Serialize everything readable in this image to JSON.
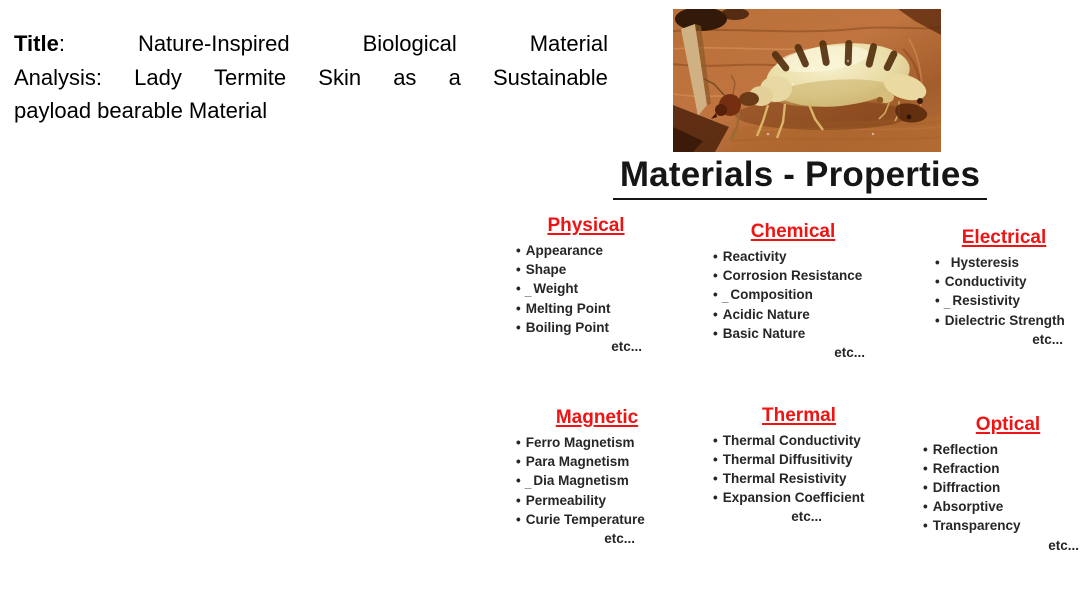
{
  "slide_title": {
    "lead": "Title",
    "lead_suffix": ":",
    "line1_words": [
      "Nature-Inspired",
      "Biological",
      "Material"
    ],
    "line2_words": [
      "Analysis:",
      "Lady",
      "Termite",
      "Skin",
      "as",
      "a",
      "Sustainable"
    ],
    "line3": "payload bearable Material",
    "full_text": "Title: Nature-Inspired Biological Material Analysis: Lady Termite Skin as a Sustainable payload bearable Material"
  },
  "properties_section": {
    "heading": "Materials - Properties",
    "groups": [
      {
        "name": "Physical",
        "items": [
          {
            "t": "Appearance"
          },
          {
            "t": "Shape"
          },
          {
            "t": "Weight",
            "m": true
          },
          {
            "t": "Melting Point"
          },
          {
            "t": "Boiling Point"
          }
        ],
        "etc": "etc..."
      },
      {
        "name": "Chemical",
        "items": [
          {
            "t": "Reactivity"
          },
          {
            "t": "Corrosion Resistance"
          },
          {
            "t": "Composition",
            "m": true
          },
          {
            "t": "Acidic Nature"
          },
          {
            "t": "Basic Nature"
          }
        ],
        "etc": "etc..."
      },
      {
        "name": "Electrical",
        "items": [
          {
            "t": "Hysteresis",
            "sp": true
          },
          {
            "t": "Conductivity"
          },
          {
            "t": "Resistivity",
            "m": true
          },
          {
            "t": "Dielectric Strength"
          }
        ],
        "etc": "etc..."
      },
      {
        "name": "Magnetic",
        "items": [
          {
            "t": "Ferro Magnetism"
          },
          {
            "t": "Para Magnetism"
          },
          {
            "t": "Dia Magnetism",
            "m": true
          },
          {
            "t": "Permeability"
          },
          {
            "t": "Curie Temperature"
          }
        ],
        "etc": "etc..."
      },
      {
        "name": "Thermal",
        "items": [
          {
            "t": "Thermal Conductivity"
          },
          {
            "t": "Thermal Diffusitivity"
          },
          {
            "t": "Thermal Resistivity"
          },
          {
            "t": "Expansion Coefficient"
          }
        ],
        "etc": "etc..."
      },
      {
        "name": "Optical",
        "items": [
          {
            "t": "Reflection"
          },
          {
            "t": "Refraction"
          },
          {
            "t": "Diffraction"
          },
          {
            "t": "Absorptive"
          },
          {
            "t": "Transparency"
          }
        ],
        "etc": "etc..."
      }
    ]
  },
  "icons": {
    "bullet": "•",
    "underscore_mark": "_",
    "photo": "termite-on-wood-photo"
  },
  "colors": {
    "accent_red": "#ee1414",
    "heading_black": "#161616",
    "body_text": "#262626",
    "title_color": "#000000"
  }
}
